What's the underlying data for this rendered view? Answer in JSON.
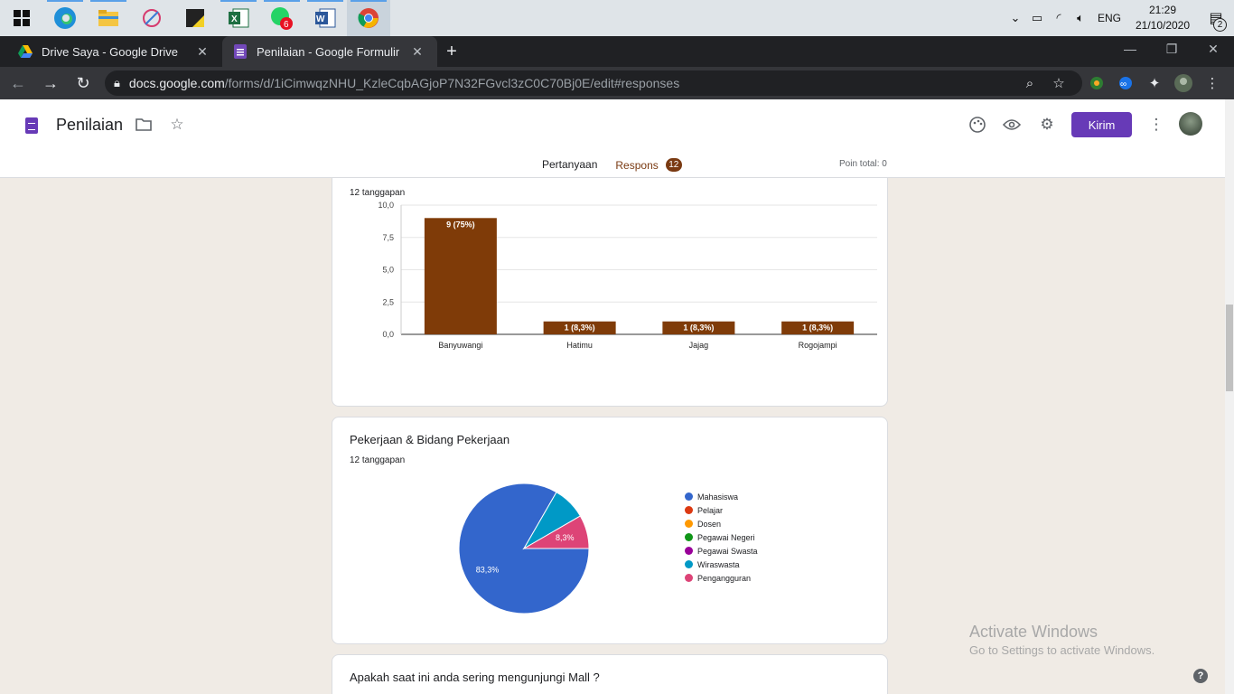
{
  "taskbar": {
    "apps": [
      {
        "name": "windows-start",
        "icon": "windows-icon"
      },
      {
        "name": "edge",
        "icon": "edge-icon"
      },
      {
        "name": "file-explorer",
        "icon": "folder-icon"
      },
      {
        "name": "snipping",
        "icon": "snip-icon"
      },
      {
        "name": "sticky-notes",
        "icon": "sticky-notes-icon"
      },
      {
        "name": "excel",
        "icon": "excel-icon"
      },
      {
        "name": "whatsapp",
        "icon": "whatsapp-icon",
        "badge": "6"
      },
      {
        "name": "word",
        "icon": "word-icon"
      },
      {
        "name": "chrome",
        "icon": "chrome-icon"
      }
    ],
    "tray": {
      "language": "ENG",
      "time": "21:29",
      "date": "21/10/2020",
      "notifications": "2"
    }
  },
  "browser": {
    "tabs": [
      {
        "title": "Drive Saya - Google Drive",
        "icon": "google-drive-icon",
        "active": false
      },
      {
        "title": "Penilaian - Google Formulir",
        "icon": "google-forms-icon",
        "active": true
      }
    ],
    "url_host": "docs.google.com",
    "url_path": "/forms/d/1iCimwqzNHU_KzleCqbAGjoP7N32FGvcl3zC0C70Bj0E/edit#responses"
  },
  "form": {
    "title": "Penilaian",
    "send_label": "Kirim",
    "tabs": {
      "questions": "Pertanyaan",
      "responses": "Respons",
      "responses_count": "12"
    },
    "total_points": "Poin total: 0"
  },
  "cards": [
    {
      "question": "",
      "responses": "12 tanggapan",
      "chart_data": {
        "type": "bar",
        "categories": [
          "Banyuwangi",
          "Hatimu",
          "Jajag",
          "Rogojampi"
        ],
        "values": [
          9,
          1,
          1,
          1
        ],
        "data_labels": [
          "9 (75%)",
          "1 (8,3%)",
          "1 (8,3%)",
          "1 (8,3%)"
        ],
        "ylim": [
          0,
          10
        ],
        "yticks": [
          "0,0",
          "2,5",
          "5,0",
          "7,5",
          "10,0"
        ],
        "color": "#7f3b08",
        "grid": true
      }
    },
    {
      "question": "Pekerjaan & Bidang Pekerjaan",
      "responses": "12 tanggapan",
      "chart_data": {
        "type": "pie",
        "labels": [
          "Mahasiswa",
          "Pelajar",
          "Dosen",
          "Pegawai Negeri",
          "Pegawai Swasta",
          "Wiraswasta",
          "Pengangguran"
        ],
        "values": [
          10,
          0,
          0,
          0,
          0,
          1,
          1
        ],
        "colors": [
          "#3366cc",
          "#dc3912",
          "#ff9900",
          "#109618",
          "#990099",
          "#0099c6",
          "#dd4477"
        ],
        "slice_labels": {
          "Mahasiswa": "83,3%",
          "Pengangguran": "8,3%"
        },
        "legend": "right"
      }
    },
    {
      "question": "Apakah saat ini anda sering mengunjungi Mall ?"
    }
  ],
  "watermark": {
    "line1": "Activate Windows",
    "line2": "Go to Settings to activate Windows."
  }
}
